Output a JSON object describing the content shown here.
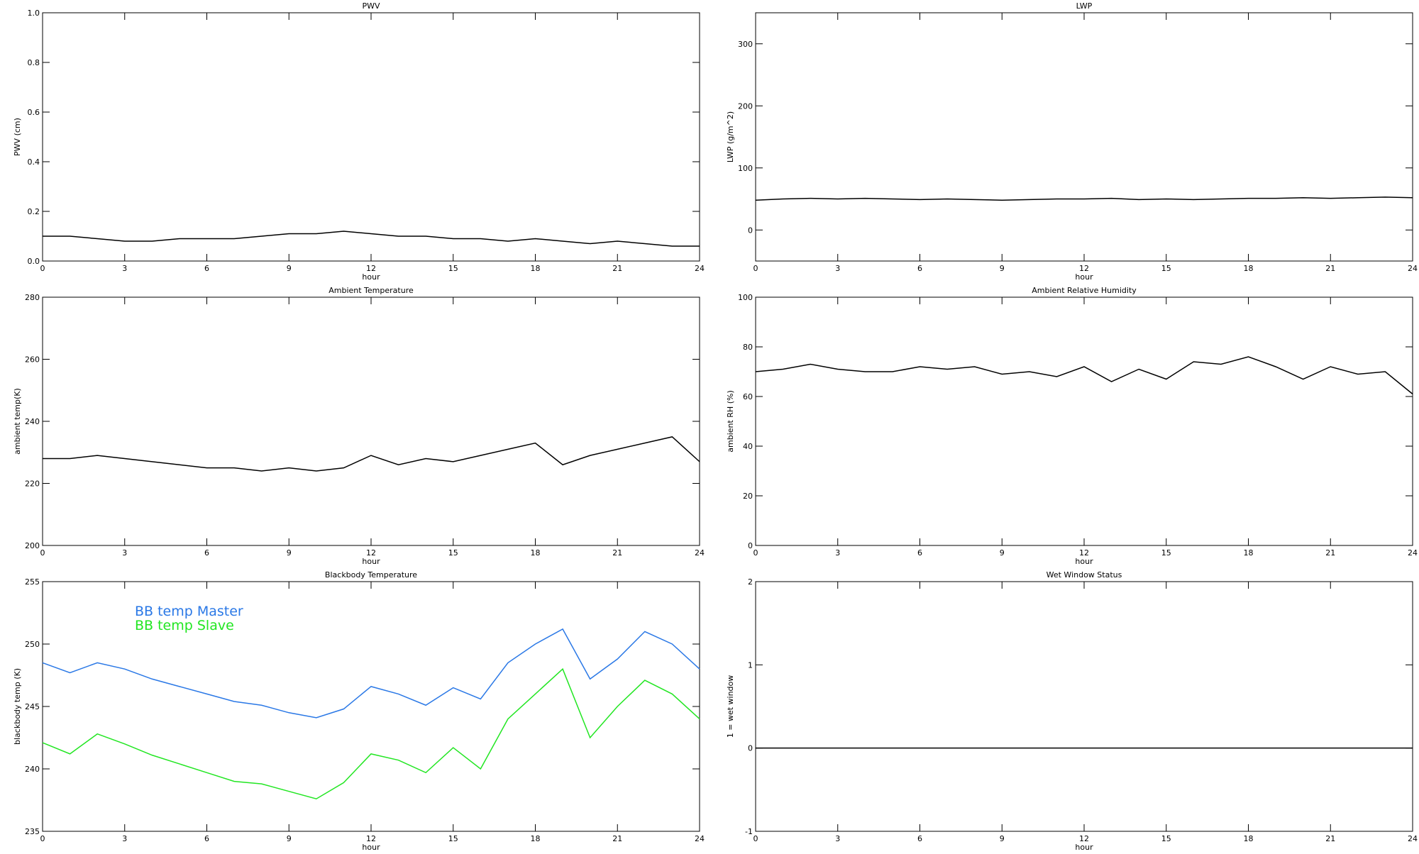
{
  "chart_data": [
    {
      "type": "line",
      "title": "PWV",
      "x_label": "hour",
      "y_label": "PWV (cm)",
      "x": [
        0,
        1,
        2,
        3,
        4,
        5,
        6,
        7,
        8,
        9,
        10,
        11,
        12,
        13,
        14,
        15,
        16,
        17,
        18,
        19,
        20,
        21,
        22,
        23,
        24
      ],
      "series": [
        {
          "color": "#000000",
          "values": [
            0.1,
            0.1,
            0.09,
            0.08,
            0.08,
            0.09,
            0.09,
            0.09,
            0.1,
            0.11,
            0.11,
            0.12,
            0.11,
            0.1,
            0.1,
            0.09,
            0.09,
            0.08,
            0.09,
            0.08,
            0.07,
            0.08,
            0.07,
            0.06,
            0.06
          ]
        }
      ],
      "xlim": [
        0,
        24
      ],
      "xticks": [
        0,
        3,
        6,
        9,
        12,
        15,
        18,
        21,
        24
      ],
      "ylim": [
        0,
        1
      ],
      "yticks": [
        {
          "value": 0,
          "label": "0.0"
        },
        {
          "value": 0.2,
          "label": "0.2"
        },
        {
          "value": 0.4,
          "label": "0.4"
        },
        {
          "value": 0.6,
          "label": "0.6"
        },
        {
          "value": 0.8,
          "label": "0.8"
        },
        {
          "value": 1,
          "label": "1.0"
        }
      ]
    },
    {
      "type": "line",
      "title": "LWP",
      "x_label": "hour",
      "y_label": "LWP (g/m^2)",
      "x": [
        0,
        1,
        2,
        3,
        4,
        5,
        6,
        7,
        8,
        9,
        10,
        11,
        12,
        13,
        14,
        15,
        16,
        17,
        18,
        19,
        20,
        21,
        22,
        23,
        24
      ],
      "series": [
        {
          "color": "#000000",
          "values": [
            48,
            50,
            51,
            50,
            51,
            50,
            49,
            50,
            49,
            48,
            49,
            50,
            50,
            51,
            49,
            50,
            49,
            50,
            51,
            51,
            52,
            51,
            52,
            53,
            52
          ]
        }
      ],
      "xlim": [
        0,
        24
      ],
      "xticks": [
        0,
        3,
        6,
        9,
        12,
        15,
        18,
        21,
        24
      ],
      "ylim": [
        -50,
        350
      ],
      "yticks": [
        0,
        100,
        200,
        300
      ]
    },
    {
      "type": "line",
      "title": "Ambient Temperature",
      "x_label": "hour",
      "y_label": "ambient temp(K)",
      "x": [
        0,
        1,
        2,
        3,
        4,
        5,
        6,
        7,
        8,
        9,
        10,
        11,
        12,
        13,
        14,
        15,
        16,
        17,
        18,
        19,
        20,
        21,
        22,
        23,
        24
      ],
      "series": [
        {
          "color": "#000000",
          "values": [
            228,
            228,
            229,
            228,
            227,
            226,
            225,
            225,
            224,
            225,
            224,
            225,
            229,
            226,
            228,
            227,
            229,
            231,
            233,
            226,
            229,
            231,
            233,
            235,
            227
          ]
        }
      ],
      "xlim": [
        0,
        24
      ],
      "xticks": [
        0,
        3,
        6,
        9,
        12,
        15,
        18,
        21,
        24
      ],
      "ylim": [
        200,
        280
      ],
      "yticks": [
        200,
        220,
        240,
        260,
        280
      ]
    },
    {
      "type": "line",
      "title": "Ambient Relative Humidity",
      "x_label": "hour",
      "y_label": "ambient RH (%)",
      "x": [
        0,
        1,
        2,
        3,
        4,
        5,
        6,
        7,
        8,
        9,
        10,
        11,
        12,
        13,
        14,
        15,
        16,
        17,
        18,
        19,
        20,
        21,
        22,
        23,
        24
      ],
      "series": [
        {
          "color": "#000000",
          "values": [
            70,
            71,
            73,
            71,
            70,
            70,
            72,
            71,
            72,
            69,
            70,
            68,
            72,
            66,
            71,
            67,
            74,
            73,
            76,
            72,
            67,
            72,
            69,
            70,
            61
          ]
        }
      ],
      "xlim": [
        0,
        24
      ],
      "xticks": [
        0,
        3,
        6,
        9,
        12,
        15,
        18,
        21,
        24
      ],
      "ylim": [
        0,
        100
      ],
      "yticks": [
        0,
        20,
        40,
        60,
        80,
        100
      ]
    },
    {
      "type": "line",
      "title": "Blackbody Temperature",
      "x_label": "hour",
      "y_label": "blackbody temp (K)",
      "legend": "upper left",
      "x": [
        0,
        1,
        2,
        3,
        4,
        5,
        6,
        7,
        8,
        9,
        10,
        11,
        12,
        13,
        14,
        15,
        16,
        17,
        18,
        19,
        20,
        21,
        22,
        23,
        24
      ],
      "series": [
        {
          "name": "BB temp Master",
          "color": "#2a78e6",
          "values": [
            248.5,
            247.7,
            248.5,
            248,
            247.2,
            246.6,
            246,
            245.4,
            245.1,
            244.5,
            244.1,
            244.8,
            246.6,
            246,
            245.1,
            246.5,
            245.6,
            248.5,
            250,
            251.2,
            247.2,
            248.8,
            251,
            250,
            248
          ]
        },
        {
          "name": "BB temp Slave",
          "color": "#22e622",
          "values": [
            242.1,
            241.2,
            242.8,
            242,
            241.1,
            240.4,
            239.7,
            239,
            238.8,
            238.2,
            237.6,
            238.9,
            241.2,
            240.7,
            239.7,
            241.7,
            240,
            244,
            246,
            248,
            242.5,
            245,
            247.1,
            246,
            244
          ]
        }
      ],
      "xlim": [
        0,
        24
      ],
      "xticks": [
        0,
        3,
        6,
        9,
        12,
        15,
        18,
        21,
        24
      ],
      "ylim": [
        235,
        255
      ],
      "yticks": [
        235,
        240,
        245,
        250,
        255
      ]
    },
    {
      "type": "line",
      "title": "Wet Window Status",
      "x_label": "hour",
      "y_label": "1 = wet window",
      "x": [
        0,
        24
      ],
      "series": [
        {
          "color": "#000000",
          "values": [
            0,
            0
          ]
        }
      ],
      "xlim": [
        0,
        24
      ],
      "xticks": [
        0,
        3,
        6,
        9,
        12,
        15,
        18,
        21,
        24
      ],
      "ylim": [
        -1,
        2
      ],
      "yticks": [
        -1,
        0,
        1,
        2
      ]
    }
  ]
}
